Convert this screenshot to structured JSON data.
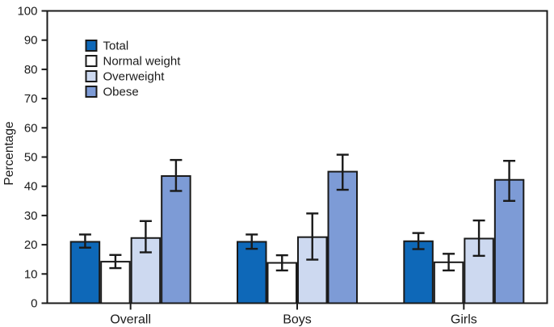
{
  "figure": {
    "background": "#ffffff",
    "axis_color": "#1a1a1a",
    "text_color": "#1a1a1a"
  },
  "chart_data": {
    "type": "bar",
    "title": "",
    "xlabel": "",
    "ylabel": "Percentage",
    "ylim": [
      0,
      100
    ],
    "ytick_step": 10,
    "grid": false,
    "legend_position": "top-left-inside",
    "error_bars": true,
    "categories": [
      "Overall",
      "Boys",
      "Girls"
    ],
    "series": [
      {
        "name": "Total",
        "color": "#0e68b8",
        "values": [
          21.0,
          21.0,
          21.2
        ],
        "ci_low": [
          19.0,
          18.6,
          18.5
        ],
        "ci_high": [
          23.5,
          23.5,
          24.0
        ]
      },
      {
        "name": "Normal weight",
        "color": "#ffffff",
        "values": [
          14.2,
          13.8,
          14.0
        ],
        "ci_low": [
          12.0,
          11.2,
          11.2
        ],
        "ci_high": [
          16.5,
          16.4,
          16.9
        ]
      },
      {
        "name": "Overweight",
        "color": "#cdd9f0",
        "values": [
          22.3,
          22.6,
          22.1
        ],
        "ci_low": [
          17.4,
          14.9,
          16.2
        ],
        "ci_high": [
          28.1,
          30.7,
          28.3
        ]
      },
      {
        "name": "Obese",
        "color": "#7d9bd6",
        "values": [
          43.5,
          45.0,
          42.2
        ],
        "ci_low": [
          38.4,
          38.8,
          35.0
        ],
        "ci_high": [
          49.0,
          50.8,
          48.7
        ]
      }
    ]
  }
}
